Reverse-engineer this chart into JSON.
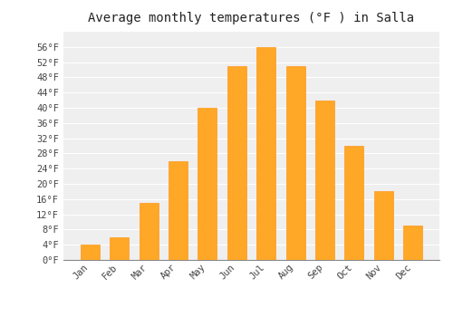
{
  "title": "Average monthly temperatures (°F ) in Salla",
  "months": [
    "Jan",
    "Feb",
    "Mar",
    "Apr",
    "May",
    "Jun",
    "Jul",
    "Aug",
    "Sep",
    "Oct",
    "Nov",
    "Dec"
  ],
  "values": [
    4,
    6,
    15,
    26,
    40,
    51,
    56,
    51,
    42,
    30,
    18,
    9
  ],
  "bar_color": "#FFA726",
  "bar_edge_color": "#FF8C00",
  "plot_background_color": "#EFEFEF",
  "fig_background_color": "#FFFFFF",
  "grid_color": "#FFFFFF",
  "ylim": [
    0,
    60
  ],
  "yticks": [
    0,
    4,
    8,
    12,
    16,
    20,
    24,
    28,
    32,
    36,
    40,
    44,
    48,
    52,
    56
  ],
  "ytick_labels": [
    "0°F",
    "4°F",
    "8°F",
    "12°F",
    "16°F",
    "20°F",
    "24°F",
    "28°F",
    "32°F",
    "36°F",
    "40°F",
    "44°F",
    "48°F",
    "52°F",
    "56°F"
  ],
  "title_fontsize": 10,
  "tick_fontsize": 7.5,
  "font_family": "monospace",
  "bar_width": 0.65
}
